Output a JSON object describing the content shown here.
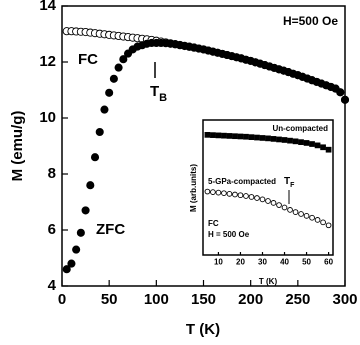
{
  "chart_data": [
    {
      "type": "scatter",
      "xlabel": "T (K)",
      "ylabel": "M (emu/g)",
      "xlim": [
        0,
        300
      ],
      "ylim": [
        4,
        14
      ],
      "xticks": [
        0,
        50,
        100,
        150,
        200,
        250,
        300
      ],
      "yticks": [
        4,
        6,
        8,
        10,
        12,
        14
      ],
      "annotations": [
        "H=500 Oe",
        "T",
        "B"
      ],
      "x": [
        5,
        10,
        15,
        20,
        25,
        30,
        35,
        40,
        45,
        50,
        55,
        60,
        65,
        70,
        75,
        80,
        85,
        90,
        95,
        100,
        105,
        110,
        115,
        120,
        125,
        130,
        135,
        140,
        145,
        150,
        155,
        160,
        165,
        170,
        175,
        180,
        185,
        190,
        195,
        200,
        205,
        210,
        215,
        220,
        225,
        230,
        235,
        240,
        245,
        250,
        255,
        260,
        265,
        270,
        275,
        280,
        285,
        290,
        295,
        300
      ],
      "series": [
        {
          "name": "FC",
          "color": "#000000",
          "marker": "open-circle",
          "values": [
            13.1,
            13.1,
            13.09,
            13.08,
            13.07,
            13.05,
            13.03,
            13.01,
            12.99,
            12.97,
            12.95,
            12.93,
            12.91,
            12.89,
            12.87,
            12.85,
            12.83,
            12.81,
            12.79,
            12.76,
            12.73,
            12.7,
            12.67,
            12.64,
            12.61,
            12.58,
            12.55,
            12.52,
            12.48,
            12.45,
            12.41,
            12.37,
            12.33,
            12.29,
            12.25,
            12.21,
            12.17,
            12.13,
            12.08,
            12.04,
            11.99,
            11.94,
            11.89,
            11.84,
            11.79,
            11.74,
            11.69,
            11.64,
            11.58,
            11.53,
            11.47,
            11.41,
            11.35,
            11.29,
            11.23,
            11.17,
            11.11,
            11.05,
            10.92,
            10.65
          ]
        },
        {
          "name": "ZFC",
          "color": "#000000",
          "marker": "filled-circle",
          "values": [
            4.6,
            4.8,
            5.3,
            5.9,
            6.7,
            7.6,
            8.6,
            9.5,
            10.3,
            10.9,
            11.4,
            11.8,
            12.1,
            12.3,
            12.45,
            12.55,
            12.6,
            12.65,
            12.68,
            12.68,
            12.68,
            12.67,
            12.65,
            12.63,
            12.6,
            12.57,
            12.54,
            12.51,
            12.48,
            12.45,
            12.41,
            12.37,
            12.33,
            12.29,
            12.25,
            12.21,
            12.17,
            12.13,
            12.08,
            12.04,
            11.99,
            11.94,
            11.89,
            11.84,
            11.79,
            11.74,
            11.69,
            11.64,
            11.58,
            11.53,
            11.47,
            11.41,
            11.35,
            11.29,
            11.23,
            11.17,
            11.11,
            11.05,
            10.92,
            10.65
          ]
        }
      ]
    },
    {
      "type": "scatter",
      "xlabel": "T (K)",
      "ylabel": "M (arb.units)",
      "xlim": [
        3,
        62
      ],
      "ylim": [
        0,
        10
      ],
      "xticks": [
        10,
        20,
        30,
        40,
        50,
        60
      ],
      "annotations": [
        "FC",
        "H = 500 Oe",
        "T",
        "F"
      ],
      "x": [
        5,
        7.5,
        10,
        12.5,
        15,
        17.5,
        20,
        22.5,
        25,
        27.5,
        30,
        32.5,
        35,
        37.5,
        40,
        42.5,
        45,
        47.5,
        50,
        52.5,
        55,
        57.5,
        60
      ],
      "series": [
        {
          "name": "Un-compacted",
          "color": "#000000",
          "marker": "filled-square",
          "values": [
            8.9,
            8.88,
            8.86,
            8.84,
            8.82,
            8.8,
            8.78,
            8.76,
            8.73,
            8.7,
            8.67,
            8.64,
            8.6,
            8.56,
            8.52,
            8.47,
            8.42,
            8.36,
            8.3,
            8.22,
            8.12,
            7.98,
            7.8
          ]
        },
        {
          "name": "5-GPa-compacted",
          "color": "#000000",
          "marker": "open-circle",
          "values": [
            4.7,
            4.66,
            4.62,
            4.58,
            4.53,
            4.48,
            4.43,
            4.37,
            4.3,
            4.22,
            4.12,
            4.0,
            3.86,
            3.7,
            3.52,
            3.34,
            3.18,
            3.04,
            2.9,
            2.76,
            2.6,
            2.42,
            2.2
          ]
        }
      ]
    }
  ]
}
